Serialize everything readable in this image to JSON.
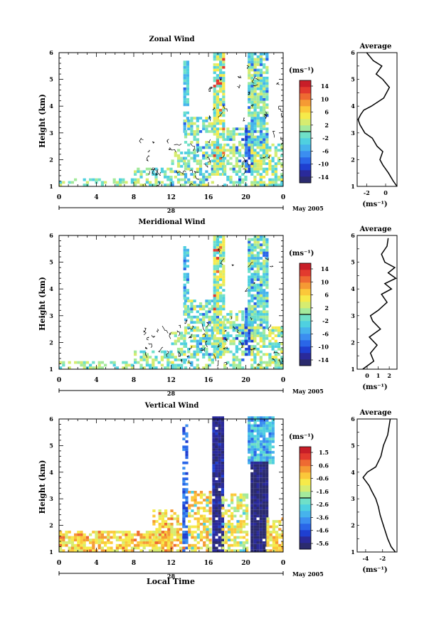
{
  "xlabel": "Local Time",
  "date_label": "May 2005",
  "day_label": "28",
  "x_ticks": [
    "0",
    "4",
    "8",
    "12",
    "16",
    "20",
    "0"
  ],
  "y_ticks": [
    "1",
    "2",
    "3",
    "4",
    "5",
    "6"
  ],
  "ylabel": "Height (km)",
  "avg_title": "Average",
  "unit": "(ms⁻¹)",
  "colors": {
    "scale": [
      "#2b2b6e",
      "#2a2a9a",
      "#1f3fd0",
      "#2a66e8",
      "#3b8ef0",
      "#46b3ec",
      "#4fd0e0",
      "#6fe0c8",
      "#a4ea9c",
      "#d6ec70",
      "#f6ea4a",
      "#fbc83a",
      "#f59a34",
      "#ee6a32",
      "#e23a2e",
      "#c81e28"
    ]
  },
  "chart_data": [
    {
      "type": "heatmap",
      "title": "Zonal Wind",
      "x_range": [
        0,
        24
      ],
      "ylim": [
        1,
        6
      ],
      "colorbar_ticks": [
        "14",
        "10",
        "6",
        "2",
        "-2",
        "-6",
        "-10",
        "-14"
      ],
      "colorbar_range": [
        -16,
        16
      ],
      "x_ticks": [
        "0",
        "4",
        "8",
        "12",
        "16",
        "20",
        "0"
      ],
      "y_ticks": [
        "1",
        "2",
        "3",
        "4",
        "5",
        "6"
      ],
      "ylabel": "Height (km)",
      "avg_title": "Average",
      "avg_xlim": [
        -3,
        1.2
      ],
      "avg_xticks": [
        "-2",
        "0"
      ],
      "avg_xlabel": "(ms⁻¹)",
      "average_profile": {
        "height": [
          1.0,
          1.2,
          1.5,
          1.8,
          2.0,
          2.3,
          2.5,
          2.8,
          3.0,
          3.3,
          3.5,
          3.7,
          3.85,
          4.0,
          4.3,
          4.7,
          5.0,
          5.2,
          5.5,
          5.7,
          6.0
        ],
        "value": [
          1.2,
          0.8,
          0.3,
          -0.3,
          -0.6,
          -0.3,
          -0.9,
          -1.4,
          -2.2,
          -2.7,
          -2.9,
          -2.6,
          -2.3,
          -1.5,
          -0.2,
          0.4,
          -0.3,
          -1.0,
          -0.4,
          -1.3,
          -2.0
        ]
      }
    },
    {
      "type": "heatmap",
      "title": "Meridional Wind",
      "x_range": [
        0,
        24
      ],
      "ylim": [
        1,
        6
      ],
      "colorbar_ticks": [
        "14",
        "10",
        "6",
        "2",
        "-2",
        "-6",
        "-10",
        "-14"
      ],
      "colorbar_range": [
        -16,
        16
      ],
      "x_ticks": [
        "0",
        "4",
        "8",
        "12",
        "16",
        "20",
        "0"
      ],
      "y_ticks": [
        "1",
        "2",
        "3",
        "4",
        "5",
        "6"
      ],
      "ylabel": "Height (km)",
      "avg_title": "Average",
      "avg_xlim": [
        -0.9,
        2.7
      ],
      "avg_xticks": [
        "0",
        "1",
        "2"
      ],
      "avg_xlabel": "(ms⁻¹)",
      "average_profile": {
        "height": [
          1.0,
          1.3,
          1.6,
          1.9,
          2.2,
          2.5,
          2.8,
          3.0,
          3.2,
          3.5,
          3.8,
          4.0,
          4.2,
          4.4,
          4.6,
          4.8,
          5.0,
          5.3,
          5.6,
          5.9
        ],
        "value": [
          -0.4,
          0.6,
          0.3,
          0.9,
          0.2,
          1.2,
          0.5,
          0.3,
          1.0,
          1.8,
          1.3,
          2.2,
          1.6,
          2.6,
          1.9,
          2.5,
          1.6,
          1.3,
          1.8,
          1.9
        ]
      }
    },
    {
      "type": "heatmap",
      "title": "Vertical Wind",
      "x_range": [
        0,
        24
      ],
      "ylim": [
        1,
        6
      ],
      "colorbar_ticks": [
        "1.5",
        "0.6",
        "-0.6",
        "-1.6",
        "-2.6",
        "-3.6",
        "-4.6",
        "-5.6"
      ],
      "colorbar_range": [
        -6.1,
        1.9
      ],
      "x_ticks": [
        "0",
        "4",
        "8",
        "12",
        "16",
        "20",
        "0"
      ],
      "y_ticks": [
        "1",
        "2",
        "3",
        "4",
        "5",
        "6"
      ],
      "ylabel": "Height (km)",
      "avg_title": "Average",
      "avg_xlim": [
        -5,
        -0.3
      ],
      "avg_xticks": [
        "-4",
        "-2"
      ],
      "avg_xlabel": "(ms⁻¹)",
      "average_profile": {
        "height": [
          1.0,
          1.2,
          1.5,
          1.8,
          2.1,
          2.4,
          2.7,
          3.0,
          3.3,
          3.5,
          3.8,
          4.0,
          4.2,
          4.6,
          5.0,
          5.4,
          5.8,
          6.0
        ],
        "value": [
          -0.5,
          -1.0,
          -1.4,
          -1.7,
          -2.0,
          -2.3,
          -2.5,
          -2.8,
          -3.3,
          -3.6,
          -4.3,
          -3.8,
          -2.8,
          -2.2,
          -1.9,
          -1.4,
          -1.2,
          -1.1
        ]
      }
    }
  ]
}
